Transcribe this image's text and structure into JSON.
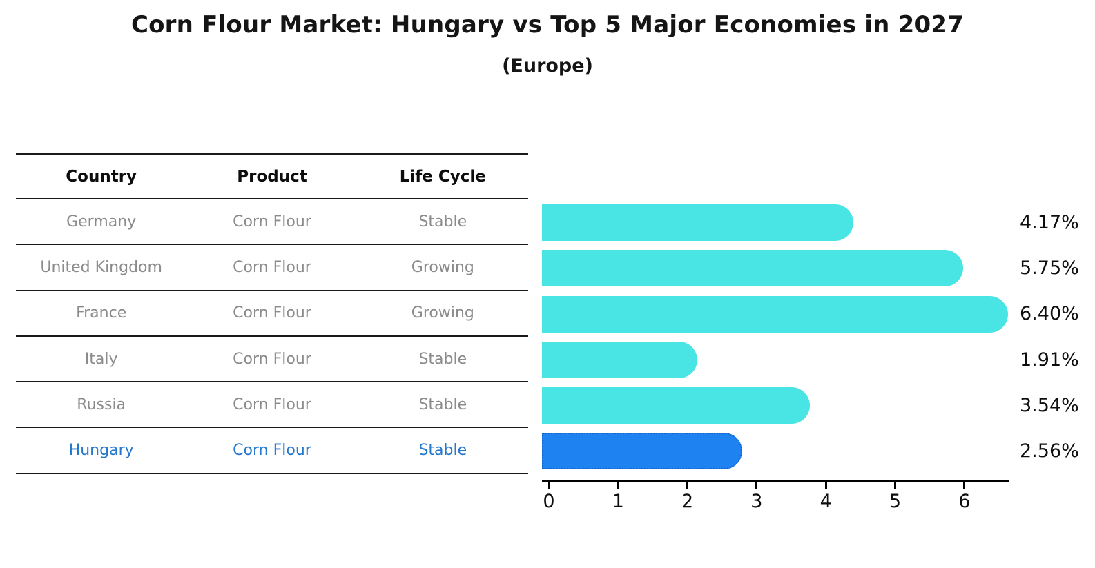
{
  "title": "Corn Flour Market: Hungary vs Top 5 Major Economies in 2027",
  "subtitle": "(Europe)",
  "colors": {
    "bar_default": "#49e4e4",
    "bar_highlight": "#1e82f0",
    "bar_highlight_border": "#1464c8",
    "row_text": "#8b8b8b",
    "highlight_text": "#2478cd"
  },
  "table": {
    "headers": [
      "Country",
      "Product",
      "Life Cycle"
    ],
    "rows": [
      {
        "country": "Germany",
        "product": "Corn Flour",
        "life_cycle": "Stable",
        "highlight": false
      },
      {
        "country": "United Kingdom",
        "product": "Corn Flour",
        "life_cycle": "Growing",
        "highlight": false
      },
      {
        "country": "France",
        "product": "Corn Flour",
        "life_cycle": "Growing",
        "highlight": false
      },
      {
        "country": "Italy",
        "product": "Corn Flour",
        "life_cycle": "Stable",
        "highlight": false
      },
      {
        "country": "Russia",
        "product": "Corn Flour",
        "life_cycle": "Stable",
        "highlight": true
      },
      {
        "country": "Hungary",
        "product": "Corn Flour",
        "life_cycle": "Stable",
        "highlight": true
      }
    ]
  },
  "chart_data": {
    "type": "bar",
    "orientation": "horizontal",
    "title": "Corn Flour Market: Hungary vs Top 5 Major Economies in 2027 (Europe)",
    "categories": [
      "Germany",
      "United Kingdom",
      "France",
      "Italy",
      "Russia",
      "Hungary"
    ],
    "values": [
      4.17,
      5.75,
      6.4,
      1.91,
      3.54,
      2.56
    ],
    "labels": [
      "4.17%",
      "5.75%",
      "6.40%",
      "1.91%",
      "3.54%",
      "2.56%"
    ],
    "unit": "%",
    "highlight_category": "Hungary",
    "xlim": [
      0,
      6.75
    ],
    "xticks": [
      0,
      1,
      2,
      3,
      4,
      5,
      6
    ],
    "grid": false,
    "legend": false
  }
}
